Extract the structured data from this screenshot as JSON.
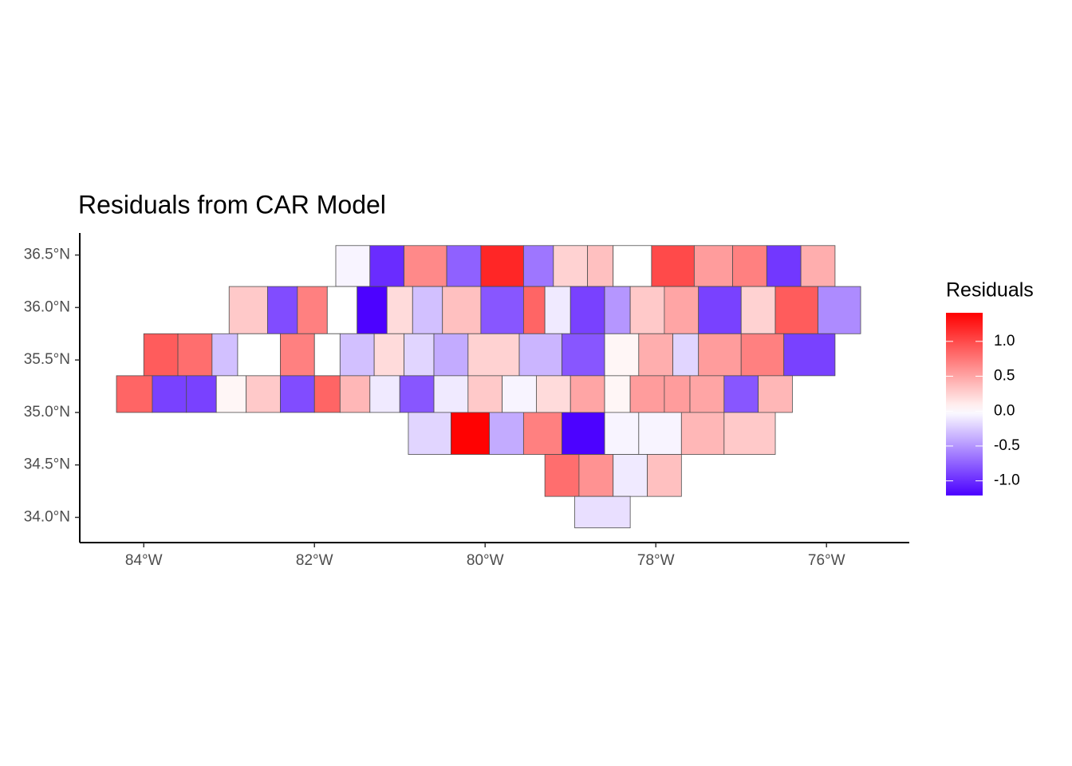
{
  "chart_data": {
    "type": "choropleth",
    "title": "Residuals from CAR Model",
    "legend_title": "Residuals",
    "values": [
      -0.05,
      -1.0,
      0.65,
      -0.75,
      1.2,
      -0.65,
      0.25,
      0.35,
      0.0,
      1.0,
      0.55,
      0.7,
      -0.95,
      0.45,
      0.3,
      -0.85,
      0.7,
      0.0,
      -1.2,
      0.2,
      -0.3,
      0.35,
      -0.8,
      0.85,
      -0.1,
      -0.9,
      -0.5,
      0.3,
      0.5,
      -0.9,
      0.25,
      0.9,
      -0.55,
      0.9,
      0.8,
      -0.3,
      0.0,
      0.7,
      0.0,
      -0.3,
      0.2,
      -0.2,
      -0.4,
      0.25,
      -0.35,
      -0.8,
      0.05,
      0.45,
      -0.2,
      0.55,
      0.7,
      -0.9,
      0.85,
      -0.9,
      -0.9,
      0.05,
      0.3,
      -0.85,
      0.85,
      0.4,
      -0.1,
      -0.8,
      -0.1,
      0.3,
      -0.05,
      0.2,
      0.5,
      0.05,
      0.55,
      0.55,
      0.5,
      -0.8,
      0.4,
      -0.2,
      1.4,
      -0.4,
      0.7,
      -1.2,
      -0.05,
      -0.05,
      0.4,
      0.3,
      0.8,
      0.6,
      -0.1,
      0.35,
      -0.15
    ],
    "colors": {
      "low": "#4b00ff",
      "mid": "#ffffff",
      "high": "#ff0000"
    },
    "fill_lim": [
      -1.21,
      1.41
    ],
    "fill_ticks": [
      {
        "value": 1.0,
        "label": "1.0"
      },
      {
        "value": 0.5,
        "label": "0.5"
      },
      {
        "value": 0.0,
        "label": "0.0"
      },
      {
        "value": -0.5,
        "label": "-0.5"
      },
      {
        "value": -1.0,
        "label": "-1.0"
      }
    ],
    "xlim": [
      -84.75,
      -75.03
    ],
    "ylim": [
      33.76,
      36.71
    ],
    "xticks": [
      {
        "value": -84,
        "label": "84°W"
      },
      {
        "value": -82,
        "label": "82°W"
      },
      {
        "value": -80,
        "label": "80°W"
      },
      {
        "value": -78,
        "label": "78°W"
      },
      {
        "value": -76,
        "label": "76°W"
      }
    ],
    "yticks": [
      {
        "value": 34.0,
        "label": "34.0°N"
      },
      {
        "value": 34.5,
        "label": "34.5°N"
      },
      {
        "value": 35.0,
        "label": "35.0°N"
      },
      {
        "value": 35.5,
        "label": "35.5°N"
      },
      {
        "value": 36.0,
        "label": "36.0°N"
      },
      {
        "value": 36.5,
        "label": "36.5°N"
      }
    ]
  }
}
